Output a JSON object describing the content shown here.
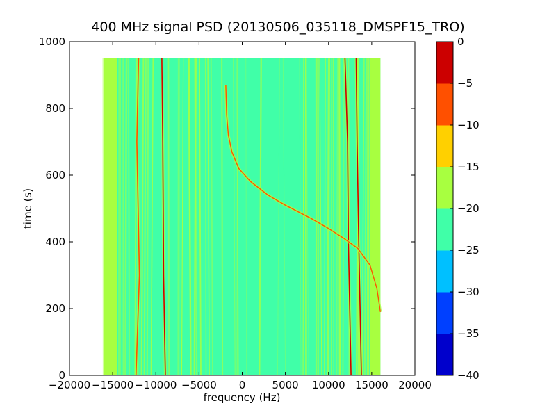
{
  "chart_data": {
    "type": "heatmap",
    "title": "400 MHz signal PSD (20130506_035118_DMSPF15_TRO)",
    "xlabel": "frequency (Hz)",
    "ylabel": "time (s)",
    "xlim": [
      -20000,
      20000
    ],
    "ylim": [
      0,
      1000
    ],
    "xticks": [
      -20000,
      -15000,
      -10000,
      -5000,
      0,
      5000,
      10000,
      15000,
      20000
    ],
    "xtick_labels": [
      "−20000",
      "−15000",
      "−10000",
      "−5000",
      "0",
      "5000",
      "10000",
      "15000",
      "20000"
    ],
    "yticks": [
      0,
      200,
      400,
      600,
      800,
      1000
    ],
    "ytick_labels": [
      "0",
      "200",
      "400",
      "600",
      "800",
      "1000"
    ],
    "data_extent": {
      "x": [
        -16000,
        16000
      ],
      "y": [
        0,
        950
      ]
    },
    "colorbar": {
      "levels": [
        -40,
        -35,
        -30,
        -25,
        -20,
        -15,
        -10,
        -5,
        0
      ],
      "tick_labels": [
        "−40",
        "−35",
        "−30",
        "−25",
        "−20",
        "−15",
        "−10",
        "−5",
        "0"
      ],
      "colors": [
        "#0000cc",
        "#0040ff",
        "#00c0ff",
        "#40ffa8",
        "#a8ff40",
        "#ffd000",
        "#ff5000",
        "#cc0000"
      ]
    },
    "background_level_color": "#40ffa8",
    "edge_level_color": "#a8ff40",
    "vertical_tone_lines": [
      {
        "name": "tone",
        "x": [
          [
            -12300,
            0
          ],
          [
            -11900,
            300
          ],
          [
            -12200,
            700
          ],
          [
            -12000,
            950
          ]
        ],
        "level": "#ff5000"
      },
      {
        "name": "tone",
        "x": [
          [
            -8900,
            0
          ],
          [
            -9100,
            300
          ],
          [
            -9200,
            700
          ],
          [
            -9300,
            950
          ]
        ],
        "level": "#cc0000"
      },
      {
        "name": "tone",
        "x": [
          [
            12600,
            0
          ],
          [
            12300,
            400
          ],
          [
            12200,
            700
          ],
          [
            11900,
            950
          ]
        ],
        "level": "#cc0000"
      },
      {
        "name": "tone",
        "x": [
          [
            13800,
            0
          ],
          [
            13500,
            400
          ],
          [
            13300,
            700
          ],
          [
            13200,
            950
          ]
        ],
        "level": "#cc0000"
      }
    ],
    "doppler_curve": {
      "points": [
        [
          16000,
          190
        ],
        [
          15600,
          260
        ],
        [
          14800,
          330
        ],
        [
          13400,
          380
        ],
        [
          11800,
          410
        ],
        [
          10000,
          440
        ],
        [
          8000,
          470
        ],
        [
          5000,
          510
        ],
        [
          3000,
          540
        ],
        [
          1000,
          580
        ],
        [
          -400,
          620
        ],
        [
          -1200,
          670
        ],
        [
          -1600,
          720
        ],
        [
          -1800,
          780
        ],
        [
          -1900,
          870
        ]
      ],
      "level": "#ff5000"
    }
  }
}
